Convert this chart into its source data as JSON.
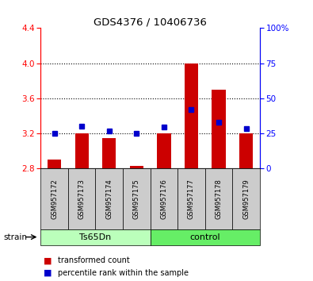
{
  "title": "GDS4376 / 10406736",
  "samples": [
    "GSM957172",
    "GSM957173",
    "GSM957174",
    "GSM957175",
    "GSM957176",
    "GSM957177",
    "GSM957178",
    "GSM957179"
  ],
  "red_values": [
    2.9,
    3.2,
    3.15,
    2.83,
    3.2,
    4.0,
    3.7,
    3.2
  ],
  "blue_values": [
    3.205,
    3.285,
    3.225,
    3.205,
    3.275,
    3.47,
    3.33,
    3.255
  ],
  "ymin": 2.8,
  "ymax": 4.4,
  "y2min": 0,
  "y2max": 100,
  "yticks": [
    2.8,
    3.2,
    3.6,
    4.0,
    4.4
  ],
  "y2ticks": [
    0,
    25,
    50,
    75,
    100
  ],
  "dotted_lines": [
    3.2,
    3.6,
    4.0
  ],
  "bar_color": "#cc0000",
  "dot_color": "#0000cc",
  "ts65dn_color": "#bbffbb",
  "control_color": "#66ee66",
  "bar_width": 0.5,
  "legend_items": [
    "transformed count",
    "percentile rank within the sample"
  ],
  "strain_label": "strain"
}
